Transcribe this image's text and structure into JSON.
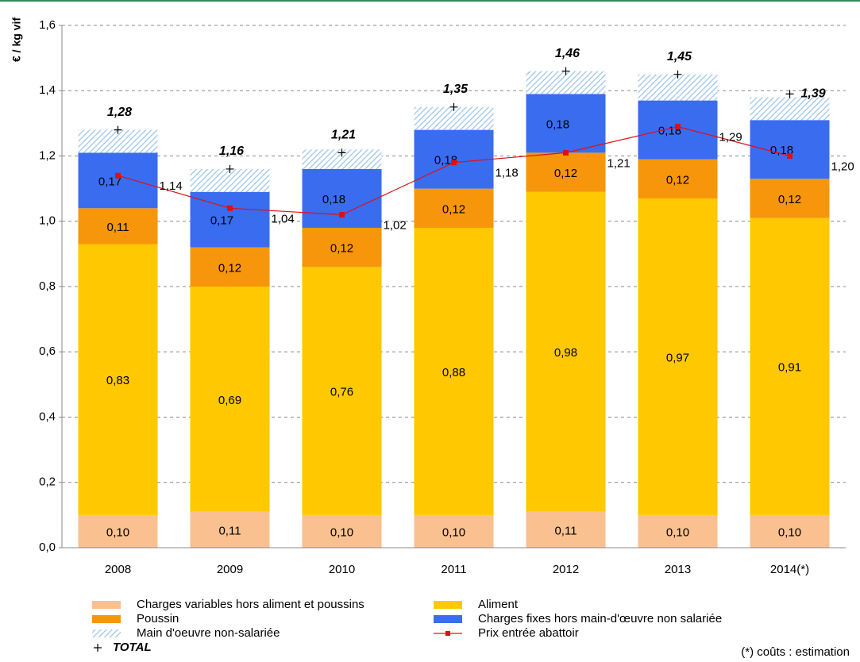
{
  "chart_data": {
    "type": "bar",
    "y_axis_title": "€ / kg vif",
    "footnote": "(*) coûts : estimation",
    "categories": [
      "2008",
      "2009",
      "2010",
      "2011",
      "2012",
      "2013",
      "2014(*)"
    ],
    "ylim": [
      0,
      1.6
    ],
    "yticks": [
      {
        "value": 0,
        "label": "0,0"
      },
      {
        "value": 0.2,
        "label": "0,2"
      },
      {
        "value": 0.4,
        "label": "0,4"
      },
      {
        "value": 0.6,
        "label": "0,6"
      },
      {
        "value": 0.8,
        "label": "0,8"
      },
      {
        "value": 1.0,
        "label": "1,0"
      },
      {
        "value": 1.2,
        "label": "1,2"
      },
      {
        "value": 1.4,
        "label": "1,4"
      },
      {
        "value": 1.6,
        "label": "1,6"
      }
    ],
    "grid": true,
    "series": [
      {
        "name": "Charges variables hors aliment et poussins",
        "type": "bar",
        "color": "#fac090",
        "values": [
          0.1,
          0.11,
          0.1,
          0.1,
          0.11,
          0.1,
          0.1
        ],
        "value_labels": [
          "0,10",
          "0,11",
          "0,10",
          "0,10",
          "0,11",
          "0,10",
          "0,10"
        ]
      },
      {
        "name": "Aliment",
        "type": "bar",
        "color": "#ffc800",
        "values": [
          0.83,
          0.69,
          0.76,
          0.88,
          0.98,
          0.97,
          0.91
        ],
        "value_labels": [
          "0,83",
          "0,69",
          "0,76",
          "0,88",
          "0,98",
          "0,97",
          "0,91"
        ]
      },
      {
        "name": "Poussin",
        "type": "bar",
        "color": "#f7960a",
        "values": [
          0.11,
          0.12,
          0.12,
          0.12,
          0.12,
          0.12,
          0.12
        ],
        "value_labels": [
          "0,11",
          "0,12",
          "0,12",
          "0,12",
          "0,12",
          "0,12",
          "0,12"
        ]
      },
      {
        "name": "Charges fixes hors main-d'œuvre non salariée",
        "type": "bar",
        "color": "#3a6cf0",
        "values": [
          0.17,
          0.17,
          0.18,
          0.18,
          0.18,
          0.18,
          0.18
        ],
        "value_labels": [
          "0,17",
          "0,17",
          "0,18",
          "0,18",
          "0,18",
          "0,18",
          "0,18"
        ]
      },
      {
        "name": "Main d'oeuvre non-salariée",
        "type": "bar",
        "color": "#9cc3e8",
        "values": [
          0.07,
          0.07,
          0.06,
          0.07,
          0.07,
          0.08,
          0.07
        ]
      },
      {
        "name": "Prix entrée abattoir",
        "type": "line",
        "color": "#e01010",
        "values": [
          1.14,
          1.04,
          1.02,
          1.18,
          1.21,
          1.29,
          1.2
        ],
        "value_labels": [
          "1,14",
          "1,04",
          "1,02",
          "1,18",
          "1,21",
          "1,29",
          "1,20"
        ]
      },
      {
        "name": "TOTAL",
        "type": "scatter",
        "color": "#000000",
        "values": [
          1.28,
          1.16,
          1.21,
          1.35,
          1.46,
          1.45,
          1.39
        ],
        "value_labels": [
          "1,28",
          "1,16",
          "1,21",
          "1,35",
          "1,46",
          "1,45",
          "1,39"
        ]
      }
    ]
  }
}
